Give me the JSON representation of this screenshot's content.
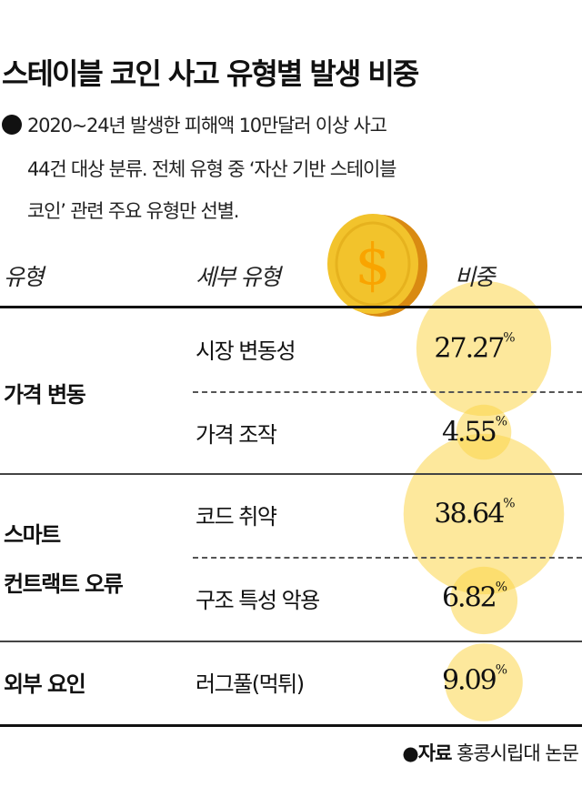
{
  "title": "스테이블 코인 사고 유형별 발생 비중",
  "note_lines": [
    "2020~24년 발생한 피해액 10만달러 이상 사고",
    "44건 대상 분류. 전체 유형 중 ‘자산 기반 스테이블",
    "코인’ 관련 주요 유형만 선별."
  ],
  "icons": {
    "coin": "dollar-coin-icon"
  },
  "chart_data": {
    "type": "table",
    "columns": [
      "유형",
      "세부 유형",
      "비중"
    ],
    "groups": [
      {
        "category": [
          "가격 변동"
        ],
        "rows": [
          {
            "subtype": "시장 변동성",
            "value": 27.27
          },
          {
            "subtype": "가격 조작",
            "value": 4.55
          }
        ]
      },
      {
        "category": [
          "스마트",
          "컨트랙트 오류"
        ],
        "rows": [
          {
            "subtype": "코드 취약",
            "value": 38.64
          },
          {
            "subtype": "구조 특성 악용",
            "value": 6.82
          }
        ]
      },
      {
        "category": [
          "외부 요인"
        ],
        "rows": [
          {
            "subtype": "러그풀(먹튀)",
            "value": 9.09
          }
        ]
      }
    ],
    "unit": "%",
    "bubble_color": "#fbd64a"
  },
  "footer": {
    "label": "자료",
    "source": "홍콩시립대 논문"
  }
}
